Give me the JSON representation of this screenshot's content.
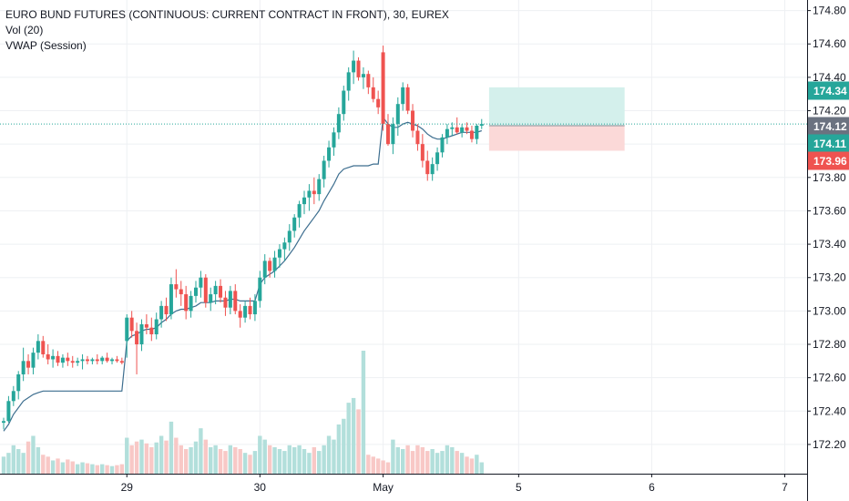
{
  "legend": {
    "title": "EURO BUND FUTURES (CONTINUOUS: CURRENT CONTRACT IN FRONT), 30, EUREX",
    "vol_label": "Vol (20)",
    "vwap_label": "VWAP (Session)"
  },
  "colors": {
    "up": "#26a69a",
    "down": "#ef5350",
    "vwap": "#3d6e8f",
    "vol_up": "#b2dfdb",
    "vol_down": "#f8c8c6",
    "current_price_label": "#6b7280",
    "target_zone": "#d4f0ec",
    "stop_zone": "#fbd9d8",
    "grid": "#eef0f3"
  },
  "chart_data": {
    "type": "candlestick",
    "title": "EURO BUND FUTURES (CONTINUOUS: CURRENT CONTRACT IN FRONT), 30, EUREX",
    "y_ticks": [
      174.8,
      174.6,
      174.4,
      174.2,
      174.0,
      173.8,
      173.6,
      173.4,
      173.2,
      173.0,
      172.8,
      172.6,
      172.4,
      172.2
    ],
    "y_tick_labels": [
      "174.80",
      "174.60",
      "174.40",
      "174.20",
      "174.00",
      "173.80",
      "173.60",
      "173.40",
      "173.20",
      "173.00",
      "172.80",
      "172.60",
      "172.40",
      "172.20"
    ],
    "x_ticks": [
      "29",
      "30",
      "May",
      "5",
      "6",
      "7"
    ],
    "price_labels": [
      {
        "text": "174.34",
        "value": 174.34,
        "role": "target"
      },
      {
        "text": "174.12",
        "value": 174.12,
        "role": "current"
      },
      {
        "text": "174.11",
        "value": 174.11,
        "role": "entry"
      },
      {
        "text": "173.96",
        "value": 173.96,
        "role": "stop"
      }
    ],
    "candles": [
      [
        172.33,
        172.36,
        172.29,
        172.34
      ],
      [
        172.34,
        172.49,
        172.33,
        172.46
      ],
      [
        172.46,
        172.55,
        172.43,
        172.52
      ],
      [
        172.52,
        172.64,
        172.47,
        172.62
      ],
      [
        172.62,
        172.78,
        172.58,
        172.7
      ],
      [
        172.7,
        172.74,
        172.62,
        172.66
      ],
      [
        172.66,
        172.78,
        172.62,
        172.75
      ],
      [
        172.75,
        172.86,
        172.71,
        172.82
      ],
      [
        172.82,
        172.85,
        172.72,
        172.74
      ],
      [
        172.74,
        172.8,
        172.68,
        172.71
      ],
      [
        172.71,
        172.77,
        172.66,
        172.73
      ],
      [
        172.73,
        172.76,
        172.67,
        172.69
      ],
      [
        172.69,
        172.74,
        172.66,
        172.72
      ],
      [
        172.72,
        172.75,
        172.67,
        172.7
      ],
      [
        172.7,
        172.73,
        172.66,
        172.69
      ],
      [
        172.69,
        172.72,
        172.67,
        172.7
      ],
      [
        172.7,
        172.74,
        172.65,
        172.71
      ],
      [
        172.71,
        172.73,
        172.68,
        172.7
      ],
      [
        172.7,
        172.72,
        172.68,
        172.71
      ],
      [
        172.71,
        172.74,
        172.68,
        172.7
      ],
      [
        172.7,
        172.73,
        172.68,
        172.72
      ],
      [
        172.72,
        172.75,
        172.69,
        172.7
      ],
      [
        172.7,
        172.72,
        172.68,
        172.71
      ],
      [
        172.71,
        172.73,
        172.69,
        172.7
      ],
      [
        172.7,
        172.72,
        172.68,
        172.69
      ],
      [
        172.82,
        172.98,
        172.72,
        172.96
      ],
      [
        172.96,
        173.0,
        172.84,
        172.88
      ],
      [
        172.88,
        172.93,
        172.62,
        172.8
      ],
      [
        172.8,
        172.95,
        172.76,
        172.92
      ],
      [
        172.92,
        172.98,
        172.86,
        172.9
      ],
      [
        172.9,
        172.96,
        172.82,
        172.86
      ],
      [
        172.86,
        172.99,
        172.83,
        172.95
      ],
      [
        172.95,
        173.06,
        172.9,
        173.03
      ],
      [
        173.03,
        173.08,
        172.94,
        172.98
      ],
      [
        172.98,
        173.2,
        172.95,
        173.16
      ],
      [
        173.16,
        173.25,
        173.08,
        173.13
      ],
      [
        173.13,
        173.18,
        173.03,
        173.1
      ],
      [
        173.1,
        173.15,
        172.95,
        173.0
      ],
      [
        173.0,
        173.12,
        172.96,
        173.09
      ],
      [
        173.09,
        173.18,
        173.05,
        173.14
      ],
      [
        173.14,
        173.24,
        173.08,
        173.2
      ],
      [
        173.2,
        173.22,
        173.02,
        173.05
      ],
      [
        173.05,
        173.14,
        173.0,
        173.1
      ],
      [
        173.1,
        173.18,
        173.04,
        173.15
      ],
      [
        173.15,
        173.19,
        173.05,
        173.08
      ],
      [
        173.08,
        173.12,
        172.97,
        173.02
      ],
      [
        173.02,
        173.15,
        172.98,
        173.12
      ],
      [
        173.12,
        173.16,
        172.98,
        173.0
      ],
      [
        173.0,
        173.04,
        172.9,
        172.96
      ],
      [
        172.96,
        173.06,
        172.93,
        173.03
      ],
      [
        173.03,
        173.08,
        172.95,
        172.98
      ],
      [
        172.98,
        173.1,
        172.94,
        173.06
      ],
      [
        173.06,
        173.24,
        173.02,
        173.2
      ],
      [
        173.2,
        173.34,
        173.16,
        173.3
      ],
      [
        173.3,
        173.32,
        173.2,
        173.24
      ],
      [
        173.24,
        173.36,
        173.2,
        173.32
      ],
      [
        173.32,
        173.4,
        173.26,
        173.37
      ],
      [
        173.37,
        173.44,
        173.3,
        173.41
      ],
      [
        173.41,
        173.52,
        173.36,
        173.48
      ],
      [
        173.48,
        173.58,
        173.44,
        173.56
      ],
      [
        173.56,
        173.66,
        173.5,
        173.64
      ],
      [
        173.64,
        173.72,
        173.58,
        173.68
      ],
      [
        173.68,
        173.76,
        173.6,
        173.72
      ],
      [
        173.72,
        173.8,
        173.64,
        173.7
      ],
      [
        173.7,
        173.82,
        173.66,
        173.79
      ],
      [
        173.79,
        173.93,
        173.74,
        173.9
      ],
      [
        173.9,
        174.02,
        173.86,
        173.98
      ],
      [
        173.98,
        174.1,
        173.93,
        174.07
      ],
      [
        174.07,
        174.22,
        174.03,
        174.18
      ],
      [
        174.18,
        174.35,
        174.14,
        174.32
      ],
      [
        174.32,
        174.46,
        174.26,
        174.43
      ],
      [
        174.43,
        174.56,
        174.36,
        174.5
      ],
      [
        174.5,
        174.52,
        174.38,
        174.4
      ],
      [
        174.4,
        174.46,
        174.33,
        174.42
      ],
      [
        174.42,
        174.44,
        174.3,
        174.34
      ],
      [
        174.34,
        174.4,
        174.25,
        174.27
      ],
      [
        174.27,
        174.32,
        174.18,
        174.22
      ],
      [
        174.55,
        174.59,
        174.08,
        174.12
      ],
      [
        174.12,
        174.18,
        173.99,
        174.0
      ],
      [
        174.0,
        174.16,
        173.94,
        174.12
      ],
      [
        174.12,
        174.28,
        174.05,
        174.24
      ],
      [
        174.24,
        174.37,
        174.2,
        174.34
      ],
      [
        174.34,
        174.36,
        174.18,
        174.2
      ],
      [
        174.2,
        174.24,
        174.04,
        174.08
      ],
      [
        174.08,
        174.12,
        173.96,
        174.0
      ],
      [
        174.0,
        174.06,
        173.86,
        173.9
      ],
      [
        173.9,
        173.96,
        173.78,
        173.82
      ],
      [
        173.82,
        173.92,
        173.78,
        173.88
      ],
      [
        173.88,
        173.98,
        173.84,
        173.95
      ],
      [
        173.95,
        174.06,
        173.92,
        174.04
      ],
      [
        174.04,
        174.12,
        174.0,
        174.09
      ],
      [
        174.09,
        174.13,
        174.05,
        174.1
      ],
      [
        174.1,
        174.16,
        174.06,
        174.07
      ],
      [
        174.07,
        174.12,
        174.04,
        174.1
      ],
      [
        174.1,
        174.13,
        174.06,
        174.08
      ],
      [
        174.08,
        174.11,
        174.01,
        174.03
      ],
      [
        174.03,
        174.12,
        174.0,
        174.11
      ],
      [
        174.11,
        174.15,
        174.09,
        174.12
      ]
    ],
    "volume": [
      18,
      22,
      30,
      26,
      22,
      34,
      40,
      28,
      20,
      18,
      14,
      16,
      12,
      15,
      13,
      10,
      12,
      11,
      10,
      9,
      10,
      9,
      8,
      9,
      10,
      38,
      30,
      34,
      36,
      32,
      28,
      33,
      40,
      35,
      55,
      38,
      30,
      26,
      28,
      34,
      48,
      36,
      28,
      30,
      26,
      24,
      30,
      28,
      26,
      22,
      20,
      24,
      40,
      36,
      30,
      28,
      26,
      24,
      30,
      28,
      30,
      26,
      22,
      28,
      24,
      30,
      40,
      36,
      52,
      58,
      75,
      80,
      68,
      130,
      20,
      18,
      16,
      14,
      12,
      36,
      28,
      26,
      30,
      24,
      30,
      28,
      24,
      26,
      22,
      24,
      30,
      28,
      24,
      22,
      18,
      16,
      20,
      12
    ],
    "vwap": [
      172.28,
      172.32,
      172.38,
      172.42,
      172.46,
      172.48,
      172.5,
      172.51,
      172.52,
      172.52,
      172.52,
      172.52,
      172.52,
      172.52,
      172.52,
      172.52,
      172.52,
      172.52,
      172.52,
      172.52,
      172.52,
      172.52,
      172.52,
      172.52,
      172.52,
      172.82,
      172.85,
      172.86,
      172.88,
      172.89,
      172.89,
      172.9,
      172.93,
      172.95,
      172.98,
      173.0,
      173.01,
      173.01,
      173.02,
      173.03,
      173.05,
      173.05,
      173.05,
      173.06,
      173.06,
      173.06,
      173.07,
      173.07,
      173.06,
      173.06,
      173.06,
      173.06,
      173.16,
      173.2,
      173.22,
      173.24,
      173.27,
      173.3,
      173.34,
      173.38,
      173.43,
      173.48,
      173.52,
      173.56,
      173.6,
      173.66,
      173.71,
      173.76,
      173.82,
      173.85,
      173.86,
      173.87,
      173.87,
      173.87,
      173.87,
      173.88,
      173.88,
      174.16,
      174.12,
      174.1,
      174.1,
      174.12,
      174.13,
      174.12,
      174.11,
      174.09,
      174.06,
      174.04,
      174.03,
      174.03,
      174.04,
      174.05,
      174.06,
      174.07,
      174.07,
      174.07,
      174.07,
      174.08
    ],
    "x_ticks_index": [
      25,
      52,
      77,
      104.5,
      131.5,
      158.5
    ],
    "current_index": 97,
    "position": {
      "target": 174.34,
      "entry": 174.11,
      "stop": 173.96,
      "start_index": 98.5,
      "end_index": 126
    }
  }
}
